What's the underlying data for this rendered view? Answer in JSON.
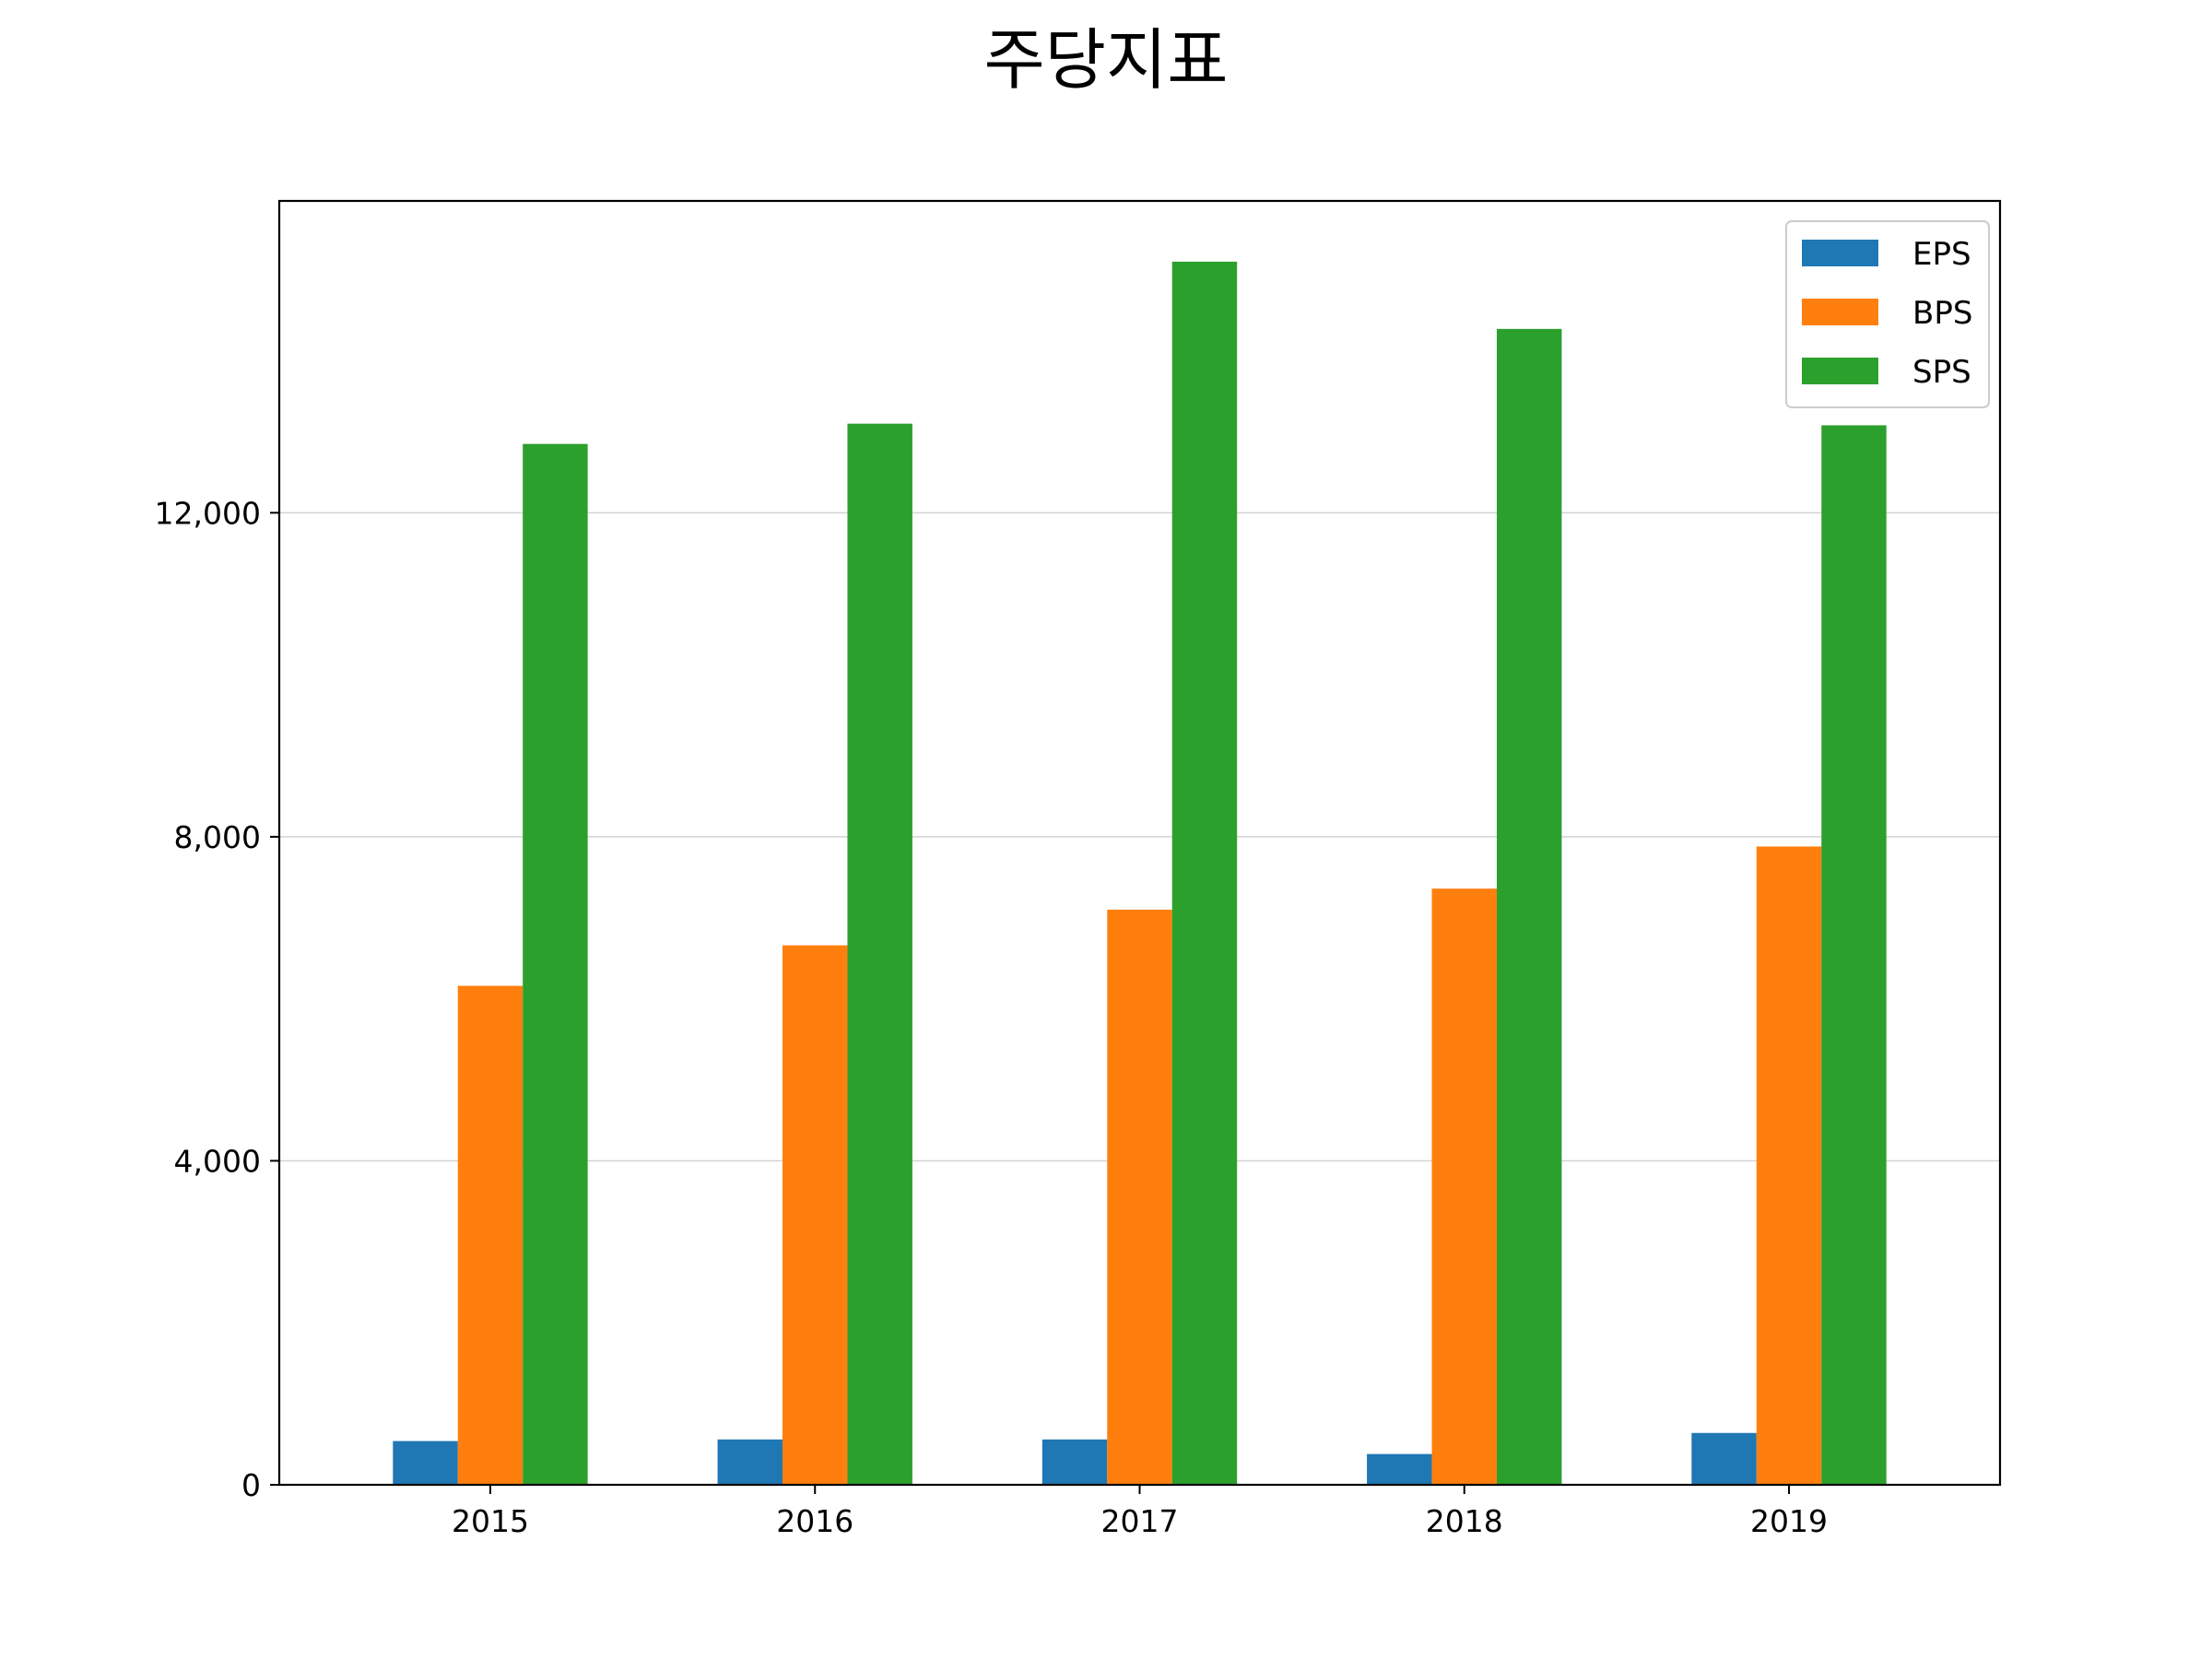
{
  "chart_data": {
    "type": "bar",
    "title": "주당지표",
    "xlabel": "",
    "ylabel": "",
    "categories": [
      "2015",
      "2016",
      "2017",
      "2018",
      "2019"
    ],
    "series": [
      {
        "name": "EPS",
        "color": "#1f77b4",
        "values": [
          540,
          560,
          560,
          380,
          640
        ]
      },
      {
        "name": "BPS",
        "color": "#ff7f0e",
        "values": [
          6160,
          6660,
          7100,
          7360,
          7880
        ]
      },
      {
        "name": "SPS",
        "color": "#2ca02c",
        "values": [
          12850,
          13100,
          15100,
          14270,
          13080
        ]
      }
    ],
    "ylim": [
      0,
      15850
    ],
    "yticks": [
      0,
      4000,
      8000,
      12000
    ],
    "ytick_labels": [
      "0",
      "4,000",
      "8,000",
      "12,000"
    ],
    "grid": {
      "y": true,
      "x": false
    },
    "legend_position": "top-right"
  }
}
